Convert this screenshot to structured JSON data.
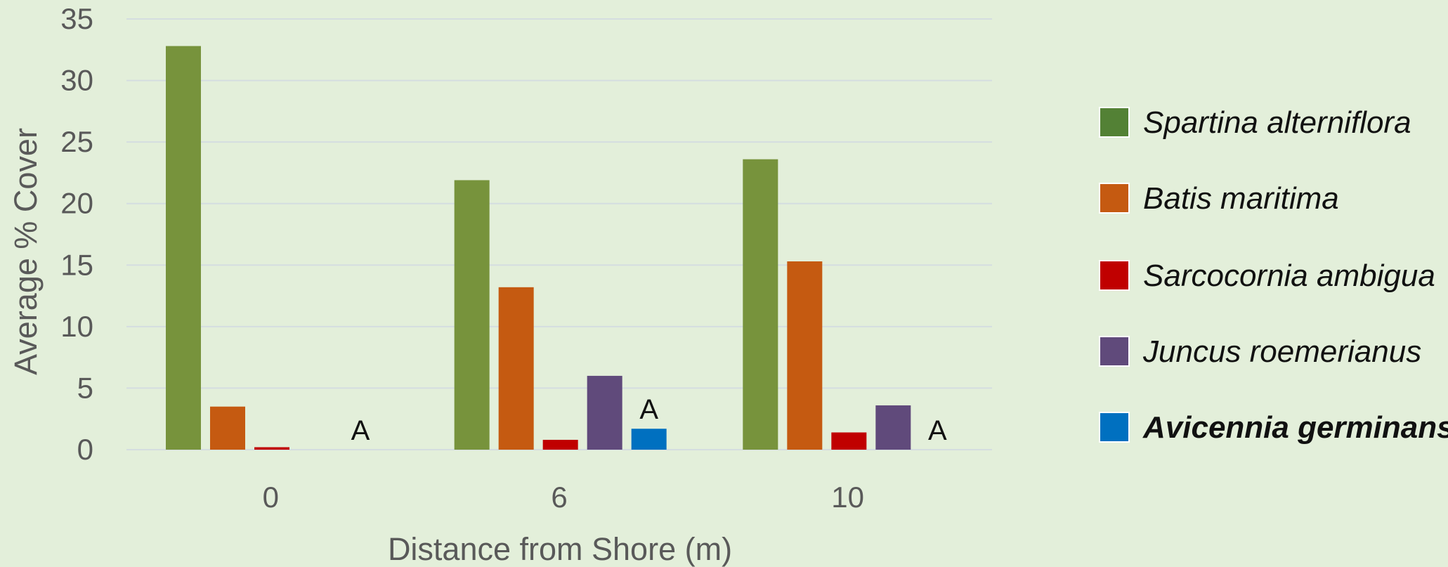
{
  "chart_data": {
    "type": "bar",
    "title": "",
    "xlabel": "Distance from Shore (m)",
    "ylabel": "Average % Cover",
    "categories": [
      "0",
      "6",
      "10"
    ],
    "ylim": [
      0,
      35
    ],
    "yticks": [
      0,
      5,
      10,
      15,
      20,
      25,
      30,
      35
    ],
    "grid": true,
    "legend_position": "right",
    "series": [
      {
        "name": "Spartina alterniflora",
        "color": "#77933c",
        "legend_color": "#538135",
        "bold": false,
        "values": [
          32.8,
          21.9,
          23.6
        ]
      },
      {
        "name": "Batis maritima",
        "color": "#c55a11",
        "legend_color": "#c55a11",
        "bold": false,
        "values": [
          3.5,
          13.2,
          15.3
        ]
      },
      {
        "name": "Sarcocornia ambigua",
        "color": "#c00000",
        "legend_color": "#c00000",
        "bold": false,
        "values": [
          0.2,
          0.8,
          1.4
        ]
      },
      {
        "name": "Juncus roemerianus",
        "color": "#604a7b",
        "legend_color": "#604a7b",
        "bold": false,
        "values": [
          0,
          6.0,
          3.6
        ]
      },
      {
        "name": "Avicennia germinans",
        "color": "#0070c0",
        "legend_color": "#0070c0",
        "bold": true,
        "values": [
          0,
          1.7,
          0
        ]
      }
    ],
    "annotations": [
      {
        "category_index": 0,
        "series_index": 4,
        "text": "A"
      },
      {
        "category_index": 1,
        "series_index": 4,
        "text": "A"
      },
      {
        "category_index": 2,
        "series_index": 4,
        "text": "A"
      }
    ],
    "colors": {
      "background": "#e3efda",
      "gridline": "#d4dde0",
      "axis_text": "#595959",
      "legend_text": "#111111"
    }
  }
}
